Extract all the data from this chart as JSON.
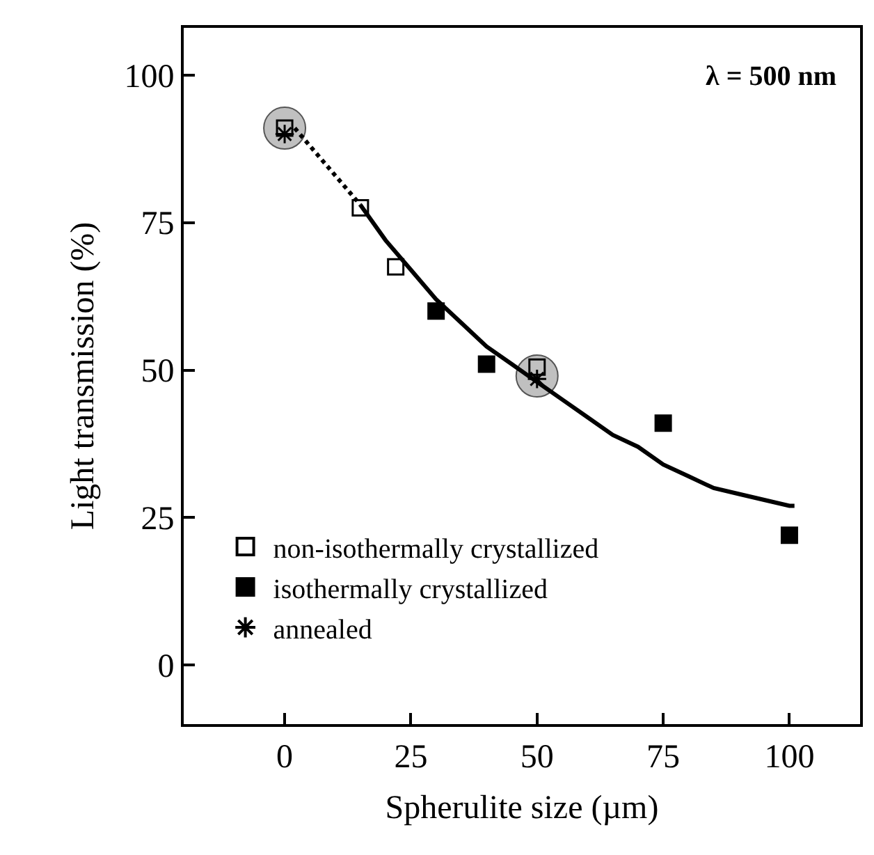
{
  "chart_data": {
    "type": "scatter",
    "xlabel": "Spherulite size (µm)",
    "ylabel": "Light transmission (%)",
    "annotations": [
      "λ = 500 nm"
    ],
    "xlim": [
      -20,
      114
    ],
    "ylim": [
      -10,
      108
    ],
    "xticks": [
      0,
      25,
      50,
      75,
      100
    ],
    "yticks": [
      0,
      25,
      50,
      75,
      100
    ],
    "legend": "bottom left",
    "series": [
      {
        "marker": "circle",
        "color": "#c0c0c0",
        "x": [
          0,
          50
        ],
        "values": [
          91,
          49
        ]
      },
      {
        "type": "line",
        "line_style": "dotted",
        "marker": "none",
        "color": "#000000",
        "x": [
          2,
          5,
          10,
          15
        ],
        "values": [
          91,
          88,
          83,
          78
        ]
      },
      {
        "type": "line",
        "line_style": "solid",
        "marker": "none",
        "color": "#000000",
        "x": [
          15,
          20,
          25,
          30,
          35,
          40,
          45,
          50,
          55,
          60,
          65,
          70,
          75,
          80,
          85,
          90,
          95,
          100,
          101
        ],
        "values": [
          78,
          72,
          67,
          62,
          58,
          54,
          51,
          48,
          45,
          42,
          39,
          37,
          34,
          32,
          30,
          29,
          28,
          27,
          27
        ]
      },
      {
        "name": "non-isothermally crystallized",
        "marker": "square-open",
        "color": "#000000",
        "x": [
          0,
          15,
          22,
          50
        ],
        "values": [
          91,
          77.5,
          67.5,
          50.5
        ]
      },
      {
        "name": "isothermally crystallized",
        "marker": "square",
        "color": "#000000",
        "x": [
          30,
          40,
          75,
          100
        ],
        "values": [
          60,
          51,
          41,
          22
        ]
      },
      {
        "name": "annealed",
        "marker": "cross",
        "color": "#000000",
        "x": [
          0,
          50
        ],
        "values": [
          90,
          48.5
        ]
      }
    ]
  }
}
